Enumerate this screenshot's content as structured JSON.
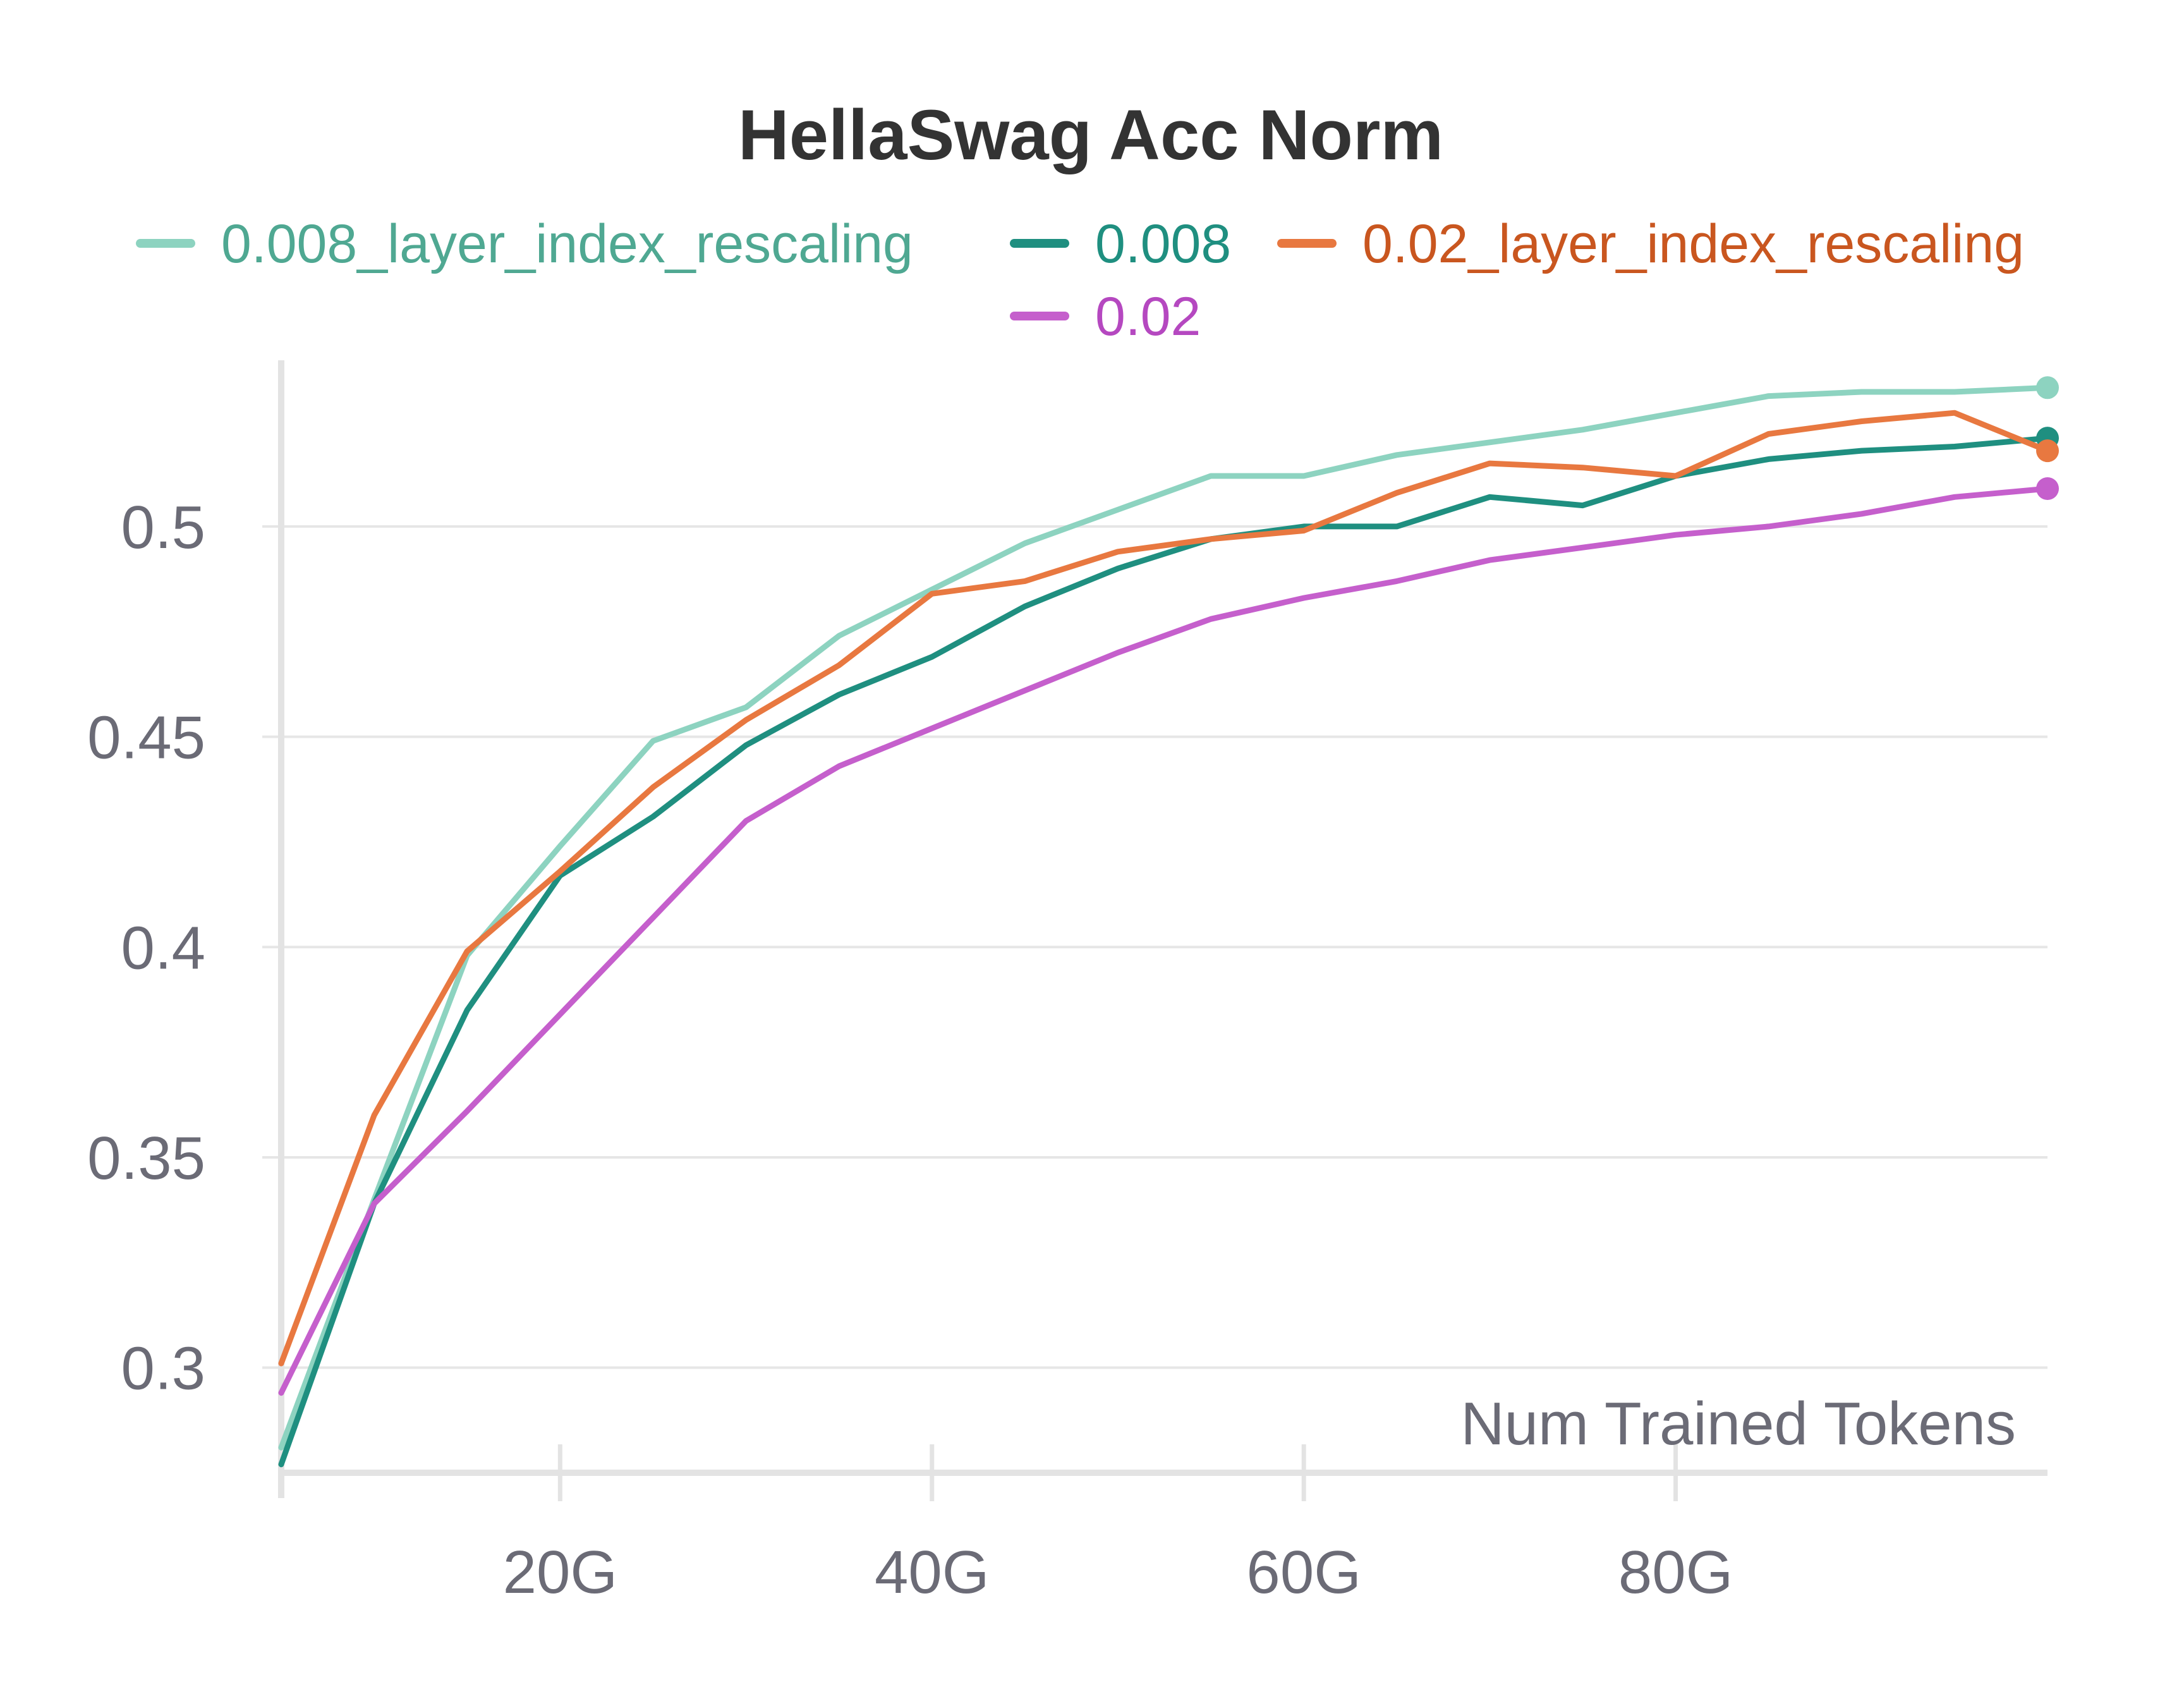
{
  "chart_data": {
    "type": "line",
    "title": "HellaSwag Acc Norm",
    "xlabel": "Num Trained Tokens",
    "ylabel": "",
    "xlim": [
      5,
      100
    ],
    "ylim": [
      0.275,
      0.535
    ],
    "x_ticks": [
      {
        "value": 20,
        "label": "20G"
      },
      {
        "value": 40,
        "label": "40G"
      },
      {
        "value": 60,
        "label": "60G"
      },
      {
        "value": 80,
        "label": "80G"
      }
    ],
    "y_ticks": [
      {
        "value": 0.3,
        "label": "0.3"
      },
      {
        "value": 0.35,
        "label": "0.35"
      },
      {
        "value": 0.4,
        "label": "0.4"
      },
      {
        "value": 0.45,
        "label": "0.45"
      },
      {
        "value": 0.5,
        "label": "0.5"
      }
    ],
    "grid": true,
    "legend_position": "top",
    "x": [
      5,
      10,
      15,
      20,
      25,
      30,
      35,
      40,
      45,
      50,
      55,
      60,
      65,
      70,
      75,
      80,
      85,
      90,
      95,
      100
    ],
    "series": [
      {
        "name": "0.008_layer_index_rescaling",
        "color": "#8dd3c0",
        "label_color": "#4fa892",
        "values": [
          0.281,
          0.34,
          0.398,
          0.424,
          0.449,
          0.457,
          0.474,
          0.485,
          0.496,
          0.504,
          0.512,
          0.512,
          0.517,
          0.52,
          0.523,
          0.527,
          0.531,
          0.532,
          0.532,
          0.533
        ]
      },
      {
        "name": "0.008",
        "color": "#1f8f80",
        "label_color": "#1f8f80",
        "values": [
          0.277,
          0.339,
          0.385,
          0.417,
          0.431,
          0.448,
          0.46,
          0.469,
          0.481,
          0.49,
          0.497,
          0.5,
          0.5,
          0.507,
          0.505,
          0.512,
          0.516,
          0.518,
          0.519,
          0.521
        ]
      },
      {
        "name": "0.02_layer_index_rescaling",
        "color": "#e87840",
        "label_color": "#c9561f",
        "values": [
          0.301,
          0.36,
          0.399,
          0.418,
          0.438,
          0.454,
          0.467,
          0.484,
          0.487,
          0.494,
          0.497,
          0.499,
          0.508,
          0.515,
          0.514,
          0.512,
          0.522,
          0.525,
          0.527,
          0.518
        ]
      },
      {
        "name": "0.02",
        "color": "#c55fcc",
        "label_color": "#b548c0",
        "values": [
          0.294,
          0.339,
          0.361,
          0.384,
          0.407,
          0.43,
          0.443,
          0.452,
          0.461,
          0.47,
          0.478,
          0.483,
          0.487,
          0.492,
          0.495,
          0.498,
          0.5,
          0.503,
          0.507,
          0.509
        ]
      }
    ]
  }
}
